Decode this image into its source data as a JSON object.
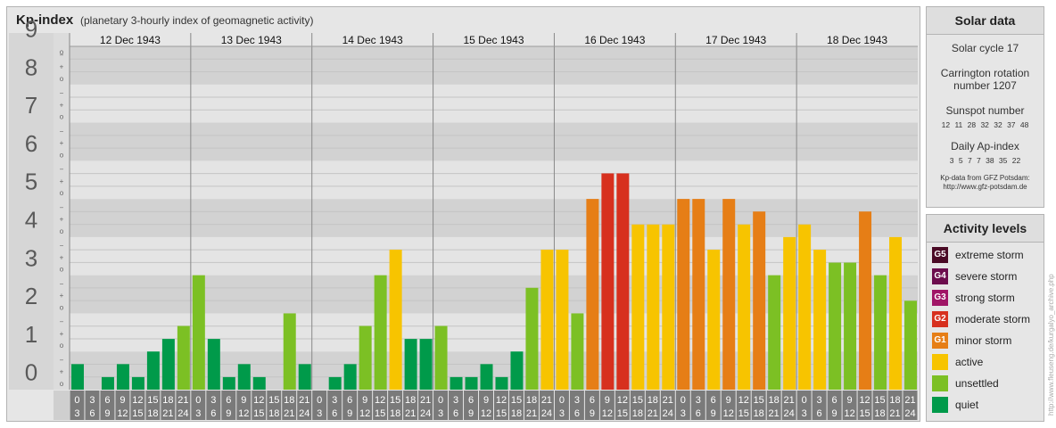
{
  "title": "Kp-index",
  "subtitle": "(planetary 3-hourly index of geomagnetic activity)",
  "chart_data": {
    "type": "bar",
    "days": [
      "12 Dec 1943",
      "13 Dec 1943",
      "14 Dec 1943",
      "15 Dec 1943",
      "16 Dec 1943",
      "17 Dec 1943",
      "18 Dec 1943"
    ],
    "hour_ticks": [
      [
        "0",
        "3"
      ],
      [
        "3",
        "6"
      ],
      [
        "6",
        "9"
      ],
      [
        "9",
        "12"
      ],
      [
        "12",
        "15"
      ],
      [
        "15",
        "18"
      ],
      [
        "18",
        "21"
      ],
      [
        "21",
        "24"
      ]
    ],
    "ylim": [
      0,
      9
    ],
    "y_ticks": [
      "0",
      "1",
      "2",
      "3",
      "4",
      "5",
      "6",
      "7",
      "8",
      "9"
    ],
    "y_minor_ticks": [
      "o",
      "+",
      "−"
    ],
    "values": [
      0.67,
      0.0,
      0.33,
      0.67,
      0.33,
      1.0,
      1.33,
      1.67,
      3.0,
      1.33,
      0.33,
      0.67,
      0.33,
      0.0,
      2.0,
      0.67,
      0.0,
      0.33,
      0.67,
      1.67,
      3.0,
      3.67,
      1.33,
      1.33,
      1.67,
      0.33,
      0.33,
      0.67,
      0.33,
      1.0,
      2.67,
      3.67,
      3.67,
      2.0,
      5.0,
      5.67,
      5.67,
      4.33,
      4.33,
      4.33,
      5.0,
      5.0,
      3.67,
      5.0,
      4.33,
      4.67,
      3.0,
      4.0,
      4.33,
      3.67,
      3.33,
      3.33,
      4.67,
      3.0,
      4.0,
      2.33
    ],
    "colors": {
      "quiet": "#009a4a",
      "unsettled": "#7cc024",
      "active": "#f7c400",
      "minor": "#e67e16",
      "moderate": "#d7301e",
      "strong": "#a01566",
      "severe": "#6c0d4d",
      "extreme": "#4a0a25"
    }
  },
  "solar": {
    "title": "Solar data",
    "cycle": "Solar cycle 17",
    "carrington_line1": "Carrington rotation",
    "carrington_line2": "number 1207",
    "sunspot_label": "Sunspot number",
    "sunspot_values": "12  11  28  32  32  37  48",
    "ap_label": "Daily Ap-index",
    "ap_values": "3  5  7  7  38  35  22",
    "source_line1": "Kp-data from GFZ Potsdam:",
    "source_line2": "http://www.gfz-potsdam.de"
  },
  "levels": {
    "title": "Activity levels",
    "items": [
      {
        "badge": "G5",
        "label": "extreme storm",
        "color": "#4a0a25"
      },
      {
        "badge": "G4",
        "label": "severe storm",
        "color": "#6c0d4d"
      },
      {
        "badge": "G3",
        "label": "strong storm",
        "color": "#a01566"
      },
      {
        "badge": "G2",
        "label": "moderate storm",
        "color": "#d7301e"
      },
      {
        "badge": "G1",
        "label": "minor storm",
        "color": "#e67e16"
      },
      {
        "badge": "",
        "label": "active",
        "color": "#f7c400"
      },
      {
        "badge": "",
        "label": "unsettled",
        "color": "#7cc024"
      },
      {
        "badge": "",
        "label": "quiet",
        "color": "#009a4a"
      }
    ]
  },
  "credit": "http://www.fleuseng.de/kurgalyo_archive.php"
}
